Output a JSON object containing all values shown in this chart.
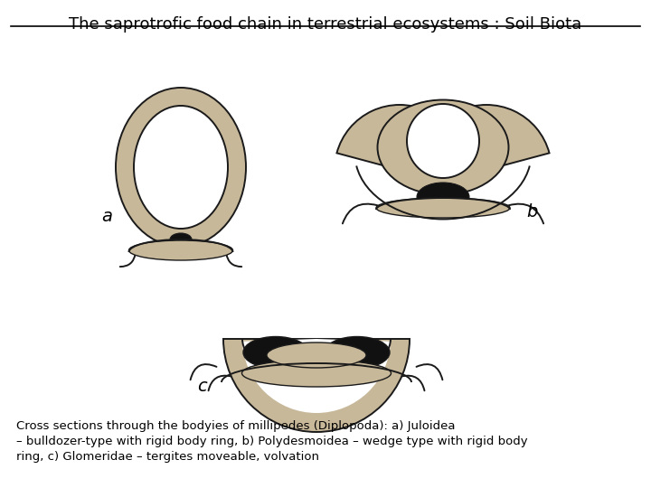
{
  "title": "The saprotrofic food chain in terrestrial ecosystems : Soil Biota",
  "caption_line1": "Cross sections through the bodyies of millipedes (Diplopoda): a) Juloidea",
  "caption_line2": "– bulldozer-type with rigid body ring, b) Polydesmoidea – wedge type with rigid body",
  "caption_line3": "ring, c) Glomeridae – tergites moveable, volvation",
  "label_a": "a",
  "label_b": "b",
  "label_c": "c",
  "bg_color": "#ffffff",
  "outline_color": "#1a1a1a",
  "fill_stipple": "#c8b89a",
  "fill_dark": "#111111"
}
